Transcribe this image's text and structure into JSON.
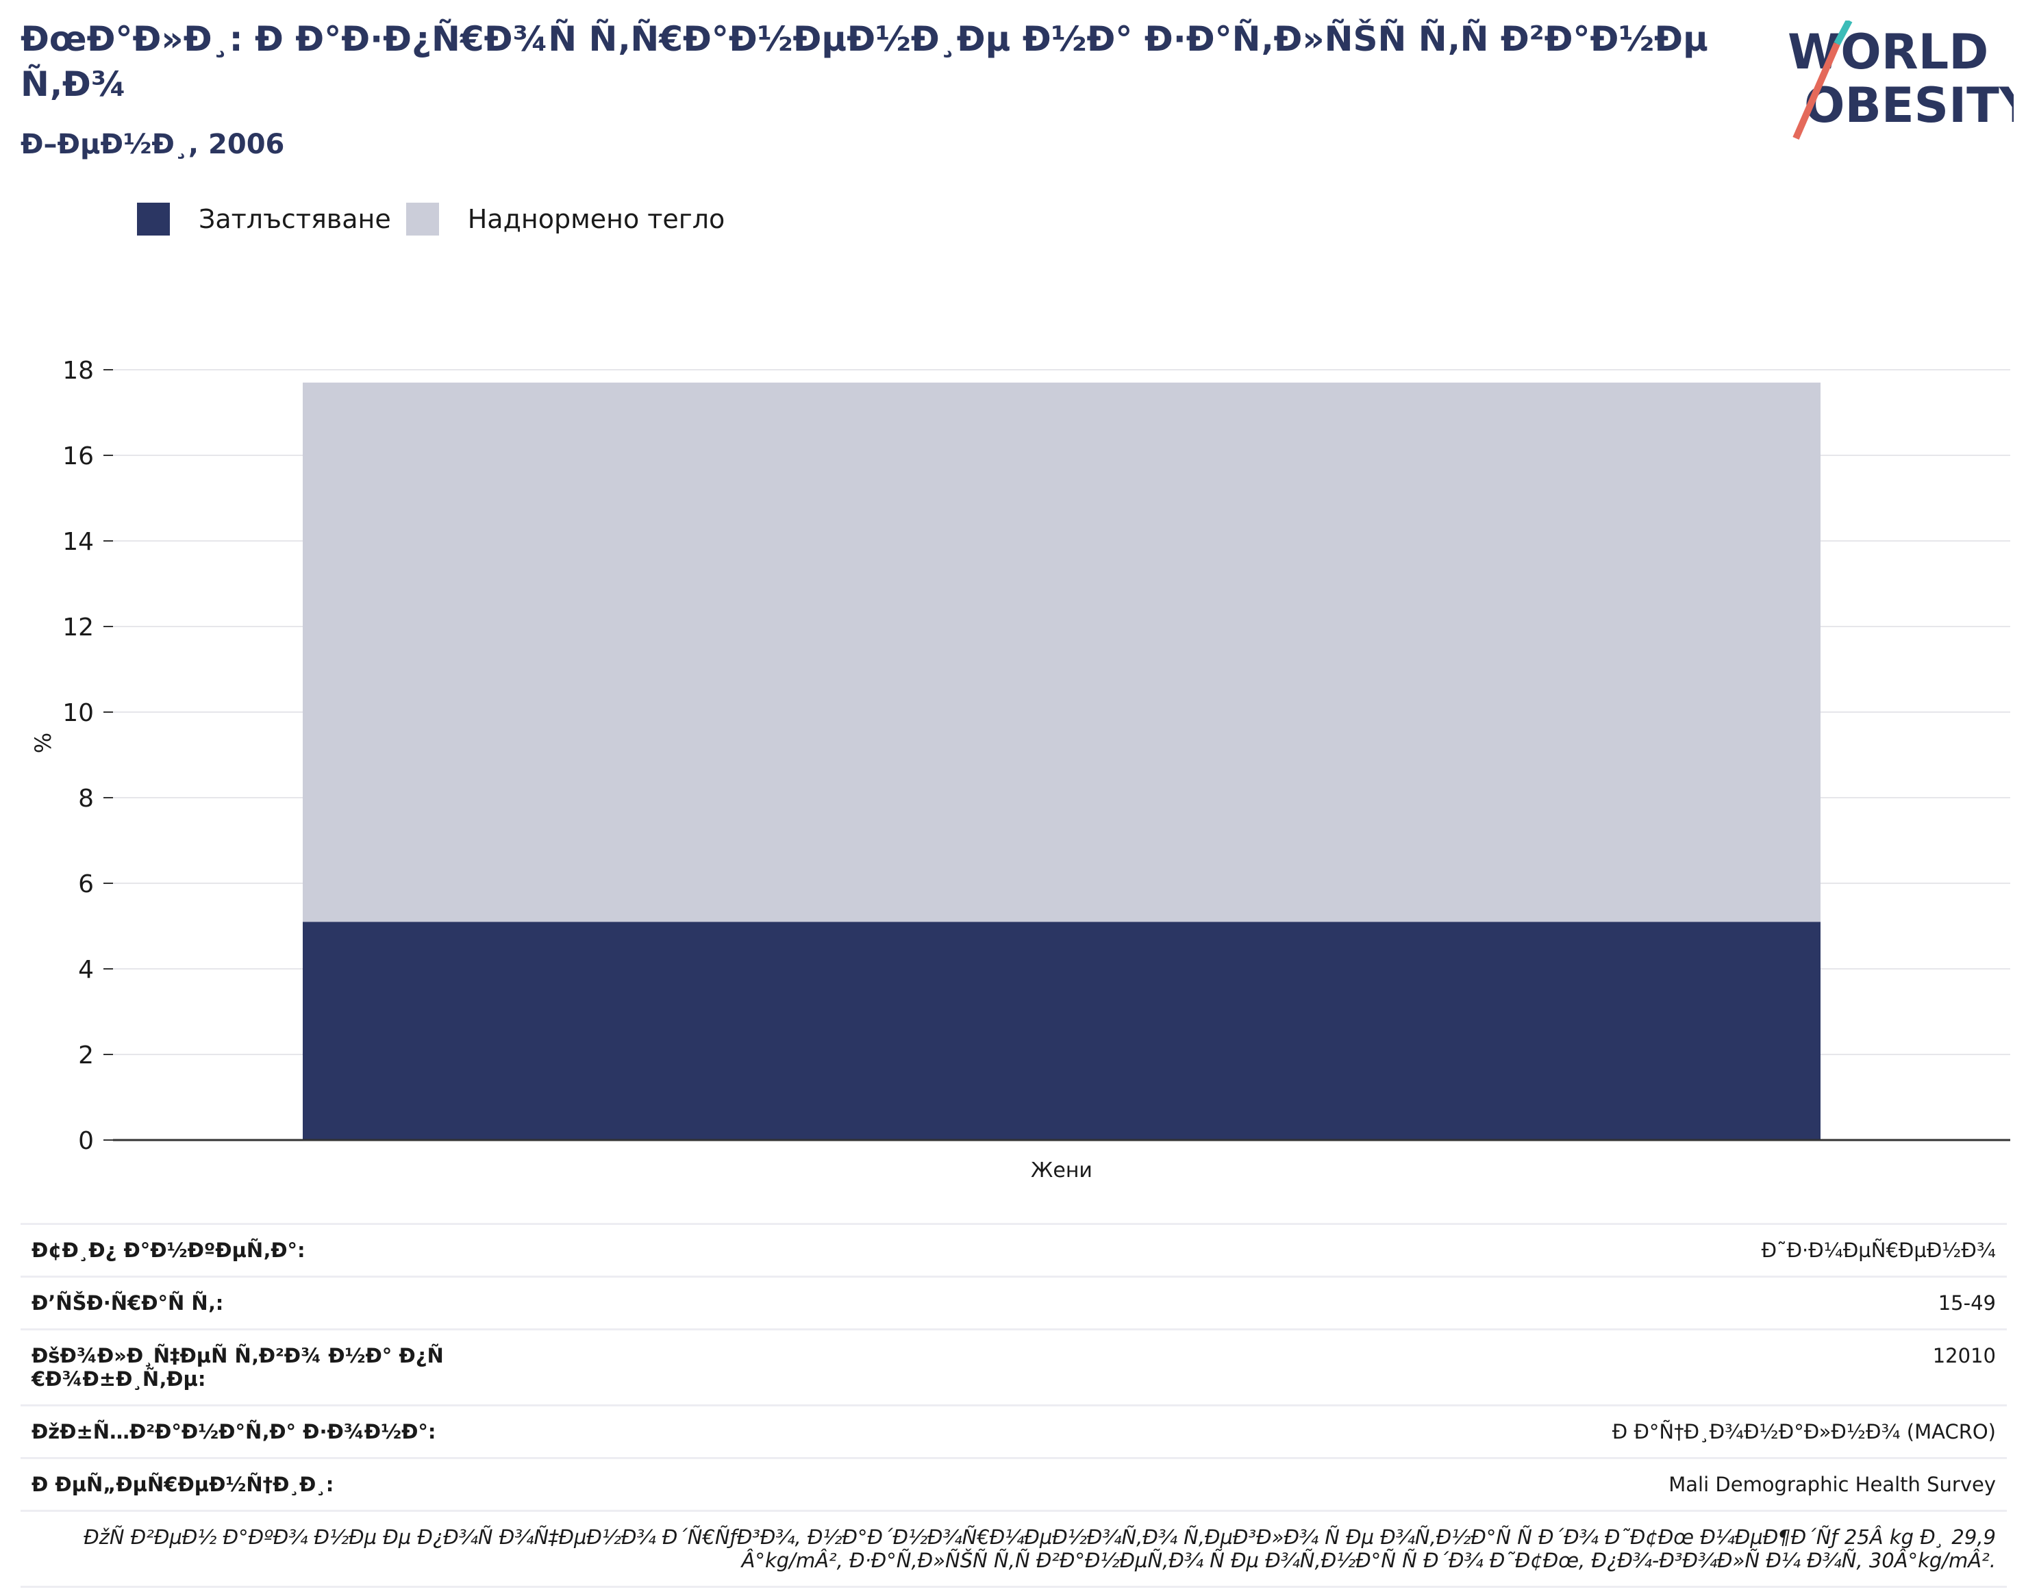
{
  "header": {
    "title": "ÐœÐ°Ð»Ð¸: Ð Ð°Ð·Ð¿Ñ€Ð¾Ñ Ñ‚Ñ€Ð°Ð½ÐµÐ½Ð¸Ðµ Ð½Ð° Ð·Ð°Ñ‚Ð»ÑŠÑ Ñ‚Ñ Ð²Ð°Ð½ÐµÑ‚Ð¾",
    "subtitle": "Ð–ÐµÐ½Ð¸, 2006"
  },
  "logo": {
    "line1": "WORLD",
    "line2": "OBESITY"
  },
  "chart_data": {
    "type": "bar",
    "stacked": true,
    "categories": [
      "Жени"
    ],
    "series": [
      {
        "name": "Затлъстяване",
        "values": [
          5.1
        ],
        "color": "#2b3663"
      },
      {
        "name": "Наднормено тегло",
        "values": [
          12.6
        ],
        "color": "#cbcdd9"
      }
    ],
    "ylabel": "%",
    "ylim": [
      0,
      18
    ],
    "yticks": [
      0,
      2,
      4,
      6,
      8,
      10,
      12,
      14,
      16,
      18
    ],
    "grid": true,
    "legend": "top-left"
  },
  "info": {
    "rows": [
      {
        "label": "Ð¢Ð¸Ð¿ Ð°Ð½ÐºÐµÑ‚Ð°:",
        "value": "Ð˜Ð·Ð¼ÐµÑ€ÐµÐ½Ð¾"
      },
      {
        "label": "Ð’ÑŠÐ·Ñ€Ð°Ñ Ñ‚:",
        "value": "15-49"
      },
      {
        "label": "ÐšÐ¾Ð»Ð¸Ñ‡ÐµÑ Ñ‚Ð²Ð¾ Ð½Ð° Ð¿Ñ€Ð¾Ð±Ð¸Ñ‚Ðµ:",
        "value": "12010"
      },
      {
        "label": "ÐžÐ±Ñ…Ð²Ð°Ð½Ð°Ñ‚Ð° Ð·Ð¾Ð½Ð°:",
        "value": "Ð Ð°Ñ†Ð¸Ð¾Ð½Ð°Ð»Ð½Ð¾ (MACRO)"
      },
      {
        "label": "Ð ÐµÑ„ÐµÑ€ÐµÐ½Ñ†Ð¸Ð¸:",
        "value": "Mali Demographic Health Survey"
      }
    ],
    "note": "ÐžÑ Ð²ÐµÐ½ Ð°ÐºÐ¾ Ð½Ðµ Ðµ Ð¿Ð¾Ñ Ð¾Ñ‡ÐµÐ½Ð¾ Ð´Ñ€ÑƒÐ³Ð¾, Ð½Ð°Ð´Ð½Ð¾Ñ€Ð¼ÐµÐ½Ð¾Ñ‚Ð¾ Ñ‚ÐµÐ³Ð»Ð¾ Ñ Ðµ Ð¾Ñ‚Ð½Ð°Ñ Ñ  Ð´Ð¾ Ð˜Ð¢Ðœ Ð¼ÐµÐ¶Ð´Ñƒ 25Â kg Ð¸ 29,9Â°kg/mÂ², Ð·Ð°Ñ‚Ð»ÑŠÑ Ñ‚Ñ Ð²Ð°Ð½ÐµÑ‚Ð¾ Ñ Ðµ Ð¾Ñ‚Ð½Ð°Ñ Ñ  Ð´Ð¾ Ð˜Ð¢Ðœ, Ð¿Ð¾-Ð³Ð¾Ð»Ñ Ð¼ Ð¾Ñ‚ 30Â°kg/mÂ²."
  }
}
